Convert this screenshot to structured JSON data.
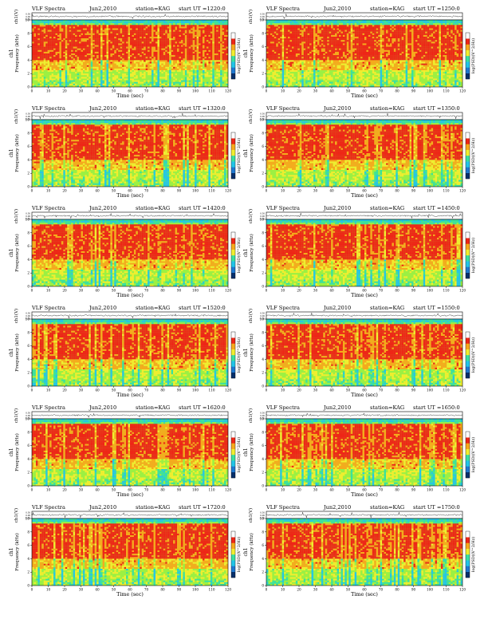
{
  "palette": [
    "#08306b",
    "#1f78d1",
    "#22c5e8",
    "#39e0a0",
    "#9cf043",
    "#f2ee2f",
    "#f7a91c",
    "#ee2617",
    "#ffffff"
  ],
  "label_text": {
    "header_title": "VLF Spectra",
    "header_station": "station=KAG",
    "header_start": "start UT =",
    "strip_ylabel": "ch1(V)",
    "spec_ylabel_channel": "ch1",
    "spec_ylabel": "Frequency (kHz)",
    "xlabel": "Time (sec)",
    "colorbar_label": "log(PSD)(V^2/Hz)"
  },
  "chart_data": [
    {
      "type": "heatmap",
      "panel": "1",
      "date": "Jun2,2010",
      "station": "KAG",
      "start_ut": "1220:0",
      "title": "VLF Spectra",
      "xlabel": "Time (sec)",
      "ylabel": "Frequency (kHz)",
      "xlim": [
        0,
        120
      ],
      "ylim": [
        0,
        10
      ],
      "x_ticks": [
        0,
        10,
        20,
        30,
        40,
        50,
        60,
        70,
        80,
        90,
        100,
        110,
        120
      ],
      "y_ticks": [
        0,
        2,
        4,
        6,
        8,
        10
      ],
      "strip": {
        "ylabel": "ch1(V)",
        "y_ticks": [
          "0.50",
          "0.00",
          "-0.50"
        ]
      },
      "colorbar": {
        "label": "log(PSD)(V^2/Hz)"
      }
    },
    {
      "type": "heatmap",
      "panel": "2",
      "date": "Jun2,2010",
      "station": "KAG",
      "start_ut": "1250:0",
      "title": "VLF Spectra",
      "xlabel": "Time (sec)",
      "ylabel": "Frequency (kHz)",
      "xlim": [
        0,
        120
      ],
      "ylim": [
        0,
        10
      ],
      "x_ticks": [
        0,
        10,
        20,
        30,
        40,
        50,
        60,
        70,
        80,
        90,
        100,
        110,
        120
      ],
      "y_ticks": [
        0,
        2,
        4,
        6,
        8,
        10
      ],
      "strip": {
        "ylabel": "ch1(V)",
        "y_ticks": [
          "0.50",
          "0.00",
          "-0.50"
        ]
      },
      "colorbar": {
        "label": "log(PSD)(V^2/Hz)"
      }
    },
    {
      "type": "heatmap",
      "panel": "3",
      "date": "Jun2,2010",
      "station": "KAG",
      "start_ut": "1320:0",
      "title": "VLF Spectra",
      "xlabel": "Time (sec)",
      "ylabel": "Frequency (kHz)",
      "xlim": [
        0,
        120
      ],
      "ylim": [
        0,
        10
      ],
      "x_ticks": [
        0,
        10,
        20,
        30,
        40,
        50,
        60,
        70,
        80,
        90,
        100,
        110,
        120
      ],
      "y_ticks": [
        0,
        2,
        4,
        6,
        8,
        10
      ],
      "strip": {
        "ylabel": "ch1(V)",
        "y_ticks": [
          "0.50",
          "0.00",
          "-0.50"
        ]
      },
      "colorbar": {
        "label": "log(PSD)(V^2/Hz)"
      }
    },
    {
      "type": "heatmap",
      "panel": "4",
      "date": "Jun2,2010",
      "station": "KAG",
      "start_ut": "1350:0",
      "title": "VLF Spectra",
      "xlabel": "Time (sec)",
      "ylabel": "Frequency (kHz)",
      "xlim": [
        0,
        120
      ],
      "ylim": [
        0,
        10
      ],
      "x_ticks": [
        0,
        10,
        20,
        30,
        40,
        50,
        60,
        70,
        80,
        90,
        100,
        110,
        120
      ],
      "y_ticks": [
        0,
        2,
        4,
        6,
        8,
        10
      ],
      "strip": {
        "ylabel": "ch1(V)",
        "y_ticks": [
          "0.50",
          "0.00",
          "-0.50"
        ]
      },
      "colorbar": {
        "label": "log(PSD)(V^2/Hz)"
      }
    },
    {
      "type": "heatmap",
      "panel": "5",
      "date": "Jun2,2010",
      "station": "KAG",
      "start_ut": "1420:0",
      "title": "VLF Spectra",
      "xlabel": "Time (sec)",
      "ylabel": "Frequency (kHz)",
      "xlim": [
        0,
        120
      ],
      "ylim": [
        0,
        10
      ],
      "x_ticks": [
        0,
        10,
        20,
        30,
        40,
        50,
        60,
        70,
        80,
        90,
        100,
        110,
        120
      ],
      "y_ticks": [
        0,
        2,
        4,
        6,
        8,
        10
      ],
      "strip": {
        "ylabel": "ch1(V)",
        "y_ticks": [
          "0.50",
          "0.00",
          "-0.50"
        ]
      },
      "colorbar": {
        "label": "log(PSD)(V^2/Hz)"
      }
    },
    {
      "type": "heatmap",
      "panel": "6",
      "date": "Jun2,2010",
      "station": "KAG",
      "start_ut": "1450:0",
      "title": "VLF Spectra",
      "xlabel": "Time (sec)",
      "ylabel": "Frequency (kHz)",
      "xlim": [
        0,
        120
      ],
      "ylim": [
        0,
        10
      ],
      "x_ticks": [
        0,
        10,
        20,
        30,
        40,
        50,
        60,
        70,
        80,
        90,
        100,
        110,
        120
      ],
      "y_ticks": [
        0,
        2,
        4,
        6,
        8,
        10
      ],
      "strip": {
        "ylabel": "ch1(V)",
        "y_ticks": [
          "0.50",
          "0.00",
          "-0.50"
        ]
      },
      "colorbar": {
        "label": "log(PSD)(V^2/Hz)"
      }
    },
    {
      "type": "heatmap",
      "panel": "7",
      "date": "Jun2,2010",
      "station": "KAG",
      "start_ut": "1520:0",
      "title": "VLF Spectra",
      "xlabel": "Time (sec)",
      "ylabel": "Frequency (kHz)",
      "xlim": [
        0,
        120
      ],
      "ylim": [
        0,
        10
      ],
      "x_ticks": [
        0,
        10,
        20,
        30,
        40,
        50,
        60,
        70,
        80,
        90,
        100,
        110,
        120
      ],
      "y_ticks": [
        0,
        2,
        4,
        6,
        8,
        10
      ],
      "strip": {
        "ylabel": "ch1(V)",
        "y_ticks": [
          "0.50",
          "0.00",
          "-0.50"
        ]
      },
      "colorbar": {
        "label": "log(PSD)(V^2/Hz)"
      }
    },
    {
      "type": "heatmap",
      "panel": "8",
      "date": "Jun2,2010",
      "station": "KAG",
      "start_ut": "1550:0",
      "title": "VLF Spectra",
      "xlabel": "Time (sec)",
      "ylabel": "Frequency (kHz)",
      "xlim": [
        0,
        120
      ],
      "ylim": [
        0,
        10
      ],
      "x_ticks": [
        0,
        10,
        20,
        30,
        40,
        50,
        60,
        70,
        80,
        90,
        100,
        110,
        120
      ],
      "y_ticks": [
        0,
        2,
        4,
        6,
        8,
        10
      ],
      "strip": {
        "ylabel": "ch1(V)",
        "y_ticks": [
          "0.50",
          "0.00",
          "-0.50"
        ]
      },
      "colorbar": {
        "label": "log(PSD)(V^2/Hz)"
      }
    },
    {
      "type": "heatmap",
      "panel": "9",
      "date": "Jun2,2010",
      "station": "KAG",
      "start_ut": "1620:0",
      "title": "VLF Spectra",
      "xlabel": "Time (sec)",
      "ylabel": "Frequency (kHz)",
      "xlim": [
        0,
        120
      ],
      "ylim": [
        0,
        10
      ],
      "x_ticks": [
        0,
        10,
        20,
        30,
        40,
        50,
        60,
        70,
        80,
        90,
        100,
        110,
        120
      ],
      "y_ticks": [
        0,
        2,
        4,
        6,
        8,
        10
      ],
      "strip": {
        "ylabel": "ch1(V)",
        "y_ticks": [
          "0.50",
          "0.00",
          "-0.50"
        ]
      },
      "colorbar": {
        "label": "log(PSD)(V^2/Hz)"
      }
    },
    {
      "type": "heatmap",
      "panel": "10",
      "date": "Jun2,2010",
      "station": "KAG",
      "start_ut": "1650:0",
      "title": "VLF Spectra",
      "xlabel": "Time (sec)",
      "ylabel": "Frequency (kHz)",
      "xlim": [
        0,
        120
      ],
      "ylim": [
        0,
        10
      ],
      "x_ticks": [
        0,
        10,
        20,
        30,
        40,
        50,
        60,
        70,
        80,
        90,
        100,
        110,
        120
      ],
      "y_ticks": [
        0,
        2,
        4,
        6,
        8,
        10
      ],
      "strip": {
        "ylabel": "ch1(V)",
        "y_ticks": [
          "0.50",
          "0.00",
          "-0.50"
        ]
      },
      "colorbar": {
        "label": "log(PSD)(V^2/Hz)"
      }
    },
    {
      "type": "heatmap",
      "panel": "11",
      "date": "Jun2,2010",
      "station": "KAG",
      "start_ut": "1720:0",
      "title": "VLF Spectra",
      "xlabel": "Time (sec)",
      "ylabel": "Frequency (kHz)",
      "xlim": [
        0,
        120
      ],
      "ylim": [
        0,
        10
      ],
      "x_ticks": [
        0,
        10,
        20,
        30,
        40,
        50,
        60,
        70,
        80,
        90,
        100,
        110,
        120
      ],
      "y_ticks": [
        0,
        2,
        4,
        6,
        8,
        10
      ],
      "strip": {
        "ylabel": "ch1(V)",
        "y_ticks": [
          "0.50",
          "0.00",
          "-0.50"
        ]
      },
      "colorbar": {
        "label": "log(PSD)(V^2/Hz)"
      }
    },
    {
      "type": "heatmap",
      "panel": "12",
      "date": "Jun2,2010",
      "station": "KAG",
      "start_ut": "1750:0",
      "title": "VLF Spectra",
      "xlabel": "Time (sec)",
      "ylabel": "Frequency (kHz)",
      "xlim": [
        0,
        120
      ],
      "ylim": [
        0,
        10
      ],
      "x_ticks": [
        0,
        10,
        20,
        30,
        40,
        50,
        60,
        70,
        80,
        90,
        100,
        110,
        120
      ],
      "y_ticks": [
        0,
        2,
        4,
        6,
        8,
        10
      ],
      "strip": {
        "ylabel": "ch1(V)",
        "y_ticks": [
          "0.50",
          "0.00",
          "-0.50"
        ]
      },
      "colorbar": {
        "label": "log(PSD)(V^2/Hz)"
      }
    }
  ]
}
